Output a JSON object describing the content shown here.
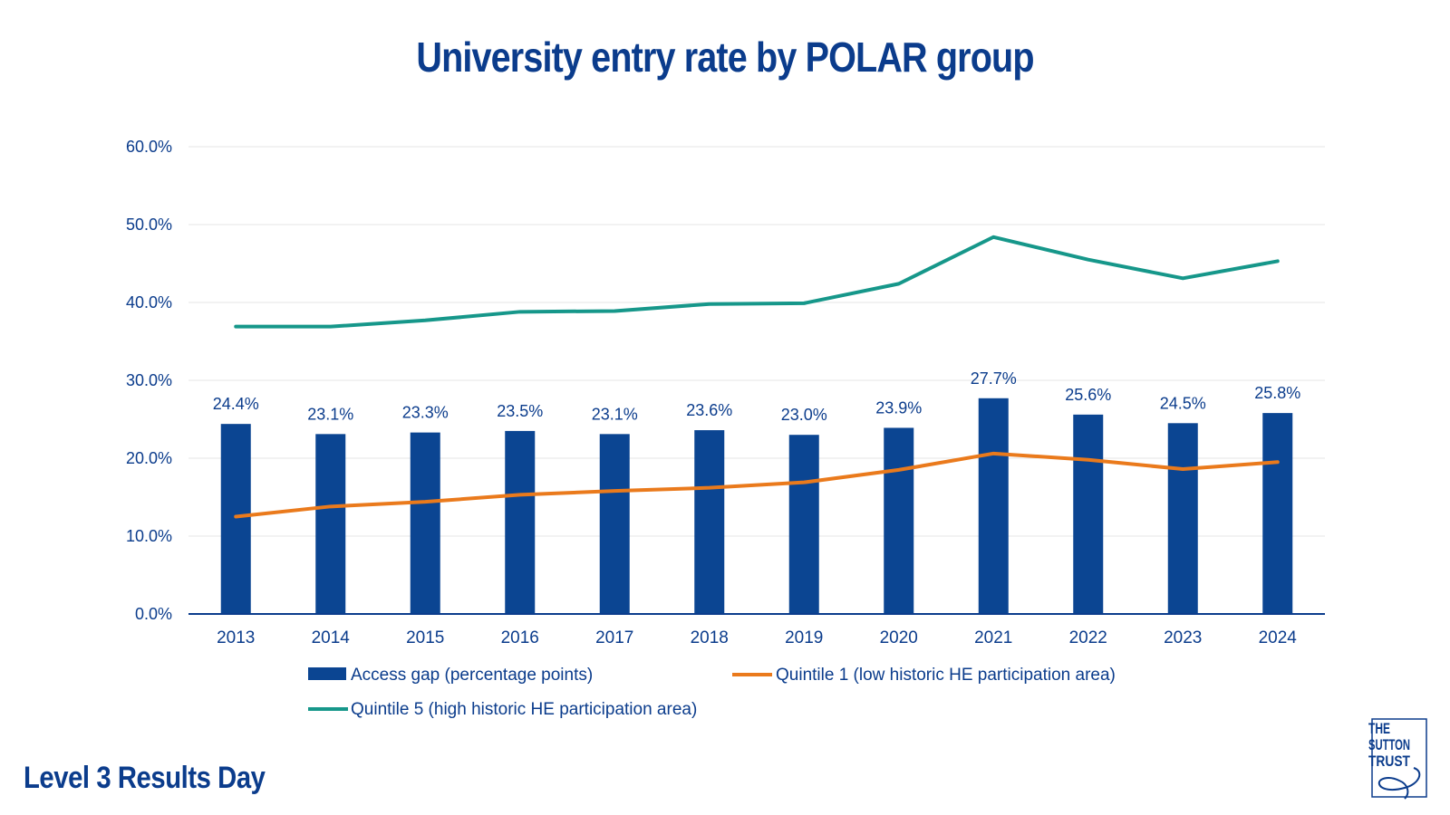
{
  "title": "University entry rate by POLAR group",
  "footer": "Level 3 Results Day",
  "logo": {
    "lines": [
      "THE",
      "SUTTON",
      "TRUST"
    ]
  },
  "colors": {
    "bar": "#0b4592",
    "q1": "#ea7a1c",
    "q5": "#16978a",
    "text": "#0b3c8c",
    "grid": "#e6e6e6"
  },
  "chart_data": {
    "type": "bar",
    "categories": [
      "2013",
      "2014",
      "2015",
      "2016",
      "2017",
      "2018",
      "2019",
      "2020",
      "2021",
      "2022",
      "2023",
      "2024"
    ],
    "ylim": [
      0,
      60
    ],
    "yticks": [
      "0.0%",
      "10.0%",
      "20.0%",
      "30.0%",
      "40.0%",
      "50.0%",
      "60.0%"
    ],
    "grid": true,
    "legend_position": "bottom",
    "series": [
      {
        "name": "Access gap (percentage points)",
        "type": "bar",
        "values": [
          24.4,
          23.1,
          23.3,
          23.5,
          23.1,
          23.6,
          23.0,
          23.9,
          27.7,
          25.6,
          24.5,
          25.8
        ],
        "labels": [
          "24.4%",
          "23.1%",
          "23.3%",
          "23.5%",
          "23.1%",
          "23.6%",
          "23.0%",
          "23.9%",
          "27.7%",
          "25.6%",
          "24.5%",
          "25.8%"
        ]
      },
      {
        "name": "Quintile 1 (low historic HE participation area)",
        "type": "line",
        "values": [
          12.5,
          13.8,
          14.4,
          15.3,
          15.8,
          16.2,
          16.9,
          18.5,
          20.6,
          19.8,
          18.6,
          19.5
        ]
      },
      {
        "name": "Quintile 5 (high historic HE participation area)",
        "type": "line",
        "values": [
          36.9,
          36.9,
          37.7,
          38.8,
          38.9,
          39.8,
          39.9,
          42.4,
          48.4,
          45.5,
          43.1,
          45.3
        ]
      }
    ]
  }
}
